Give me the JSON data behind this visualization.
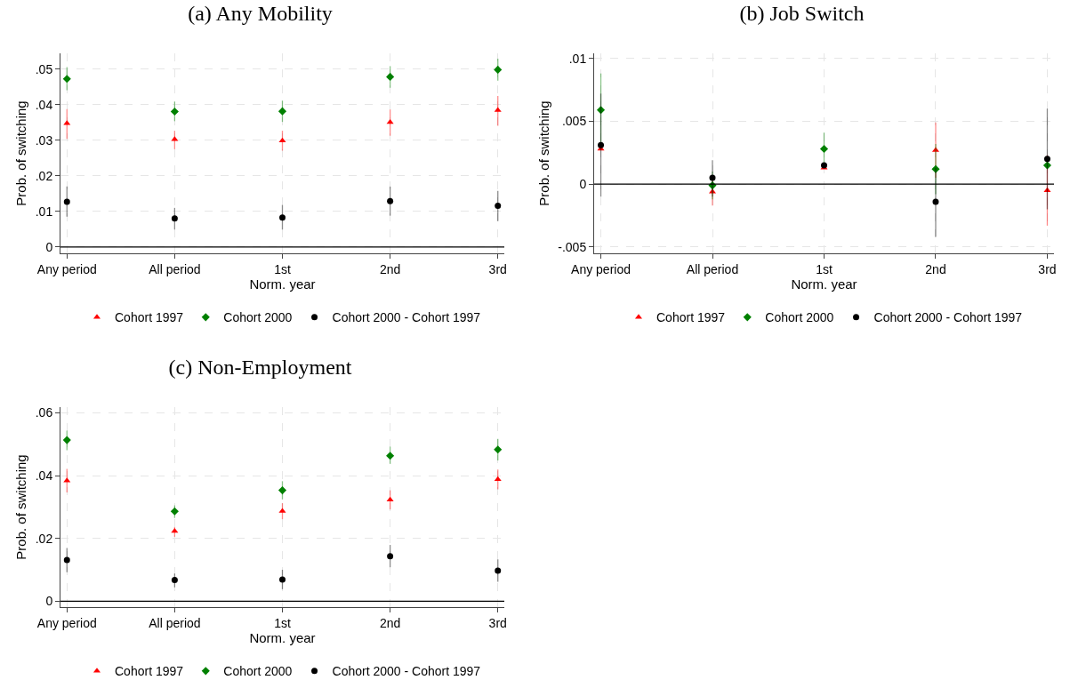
{
  "chart_data": [
    {
      "type": "scatter",
      "title": "(a) Any Mobility",
      "xlabel": "Norm. year",
      "ylabel": "Prob. of switching",
      "categories": [
        "Any period",
        "All period",
        "1st",
        "2nd",
        "3rd"
      ],
      "ylim": [
        -0.0018,
        0.0545
      ],
      "yticks": [
        {
          "value": 0,
          "label": "0"
        },
        {
          "value": 0.01,
          "label": ".01"
        },
        {
          "value": 0.02,
          "label": ".02"
        },
        {
          "value": 0.03,
          "label": ".03"
        },
        {
          "value": 0.04,
          "label": ".04"
        },
        {
          "value": 0.05,
          "label": ".05"
        }
      ],
      "grid": true,
      "legend": "bottom",
      "ref_lines": [
        {
          "axis": "y",
          "value": 0,
          "color": "#000000"
        }
      ],
      "series": [
        {
          "name": "Cohort 1997",
          "color": "#ff0000",
          "marker": "triangle",
          "values": [
            0.0348,
            0.0303,
            0.0299,
            0.0351,
            0.0385
          ],
          "errors": [
            [
              0.0304,
              0.0388
            ],
            [
              0.0275,
              0.0327
            ],
            [
              0.0271,
              0.0327
            ],
            [
              0.0313,
              0.0387
            ],
            [
              0.0341,
              0.0425
            ]
          ]
        },
        {
          "name": "Cohort 2000",
          "color": "#008000",
          "marker": "diamond",
          "values": [
            0.0473,
            0.0381,
            0.0382,
            0.0479,
            0.0499
          ],
          "errors": [
            [
              0.0441,
              0.0506
            ],
            [
              0.0354,
              0.0409
            ],
            [
              0.0352,
              0.0412
            ],
            [
              0.0448,
              0.0509
            ],
            [
              0.0468,
              0.053
            ]
          ]
        },
        {
          "name": "Cohort 2000 - Cohort 1997",
          "color": "#000000",
          "marker": "circle",
          "values": [
            0.0127,
            0.008,
            0.0083,
            0.0129,
            0.0116
          ],
          "errors": [
            [
              0.0085,
              0.017
            ],
            [
              0.0049,
              0.011
            ],
            [
              0.0049,
              0.0118
            ],
            [
              0.0088,
              0.017
            ],
            [
              0.0073,
              0.0158
            ]
          ]
        }
      ]
    },
    {
      "type": "scatter",
      "title": "(b) Job Switch",
      "xlabel": "Norm. year",
      "ylabel": "Prob. of switching",
      "categories": [
        "Any period",
        "All period",
        "1st",
        "2nd",
        "3rd"
      ],
      "ylim": [
        -0.0055,
        0.0104
      ],
      "yticks": [
        {
          "value": -0.005,
          "label": "-.005"
        },
        {
          "value": 0,
          "label": "0"
        },
        {
          "value": 0.005,
          "label": ".005"
        },
        {
          "value": 0.01,
          "label": ".01"
        }
      ],
      "grid": true,
      "legend": "bottom",
      "ref_lines": [
        {
          "axis": "y",
          "value": 0,
          "color": "#000000"
        }
      ],
      "series": [
        {
          "name": "Cohort 1997",
          "color": "#ff0000",
          "marker": "triangle",
          "values": [
            0.0028,
            -0.0006,
            0.0013,
            0.0027,
            -0.0005
          ],
          "errors": [
            null,
            [
              -0.0017,
              0.0005
            ],
            null,
            [
              0.0005,
              0.0049
            ],
            [
              -0.0033,
              0.0023
            ]
          ]
        },
        {
          "name": "Cohort 2000",
          "color": "#008000",
          "marker": "diamond",
          "values": [
            0.0059,
            -0.0001,
            0.0028,
            0.0012,
            0.0015
          ],
          "errors": [
            [
              0.003,
              0.0088
            ],
            [
              -0.0012,
              0.001
            ],
            [
              0.0015,
              0.0041
            ],
            [
              -0.0008,
              0.0032
            ],
            null
          ]
        },
        {
          "name": "Cohort 2000 - Cohort 1997",
          "color": "#000000",
          "marker": "circle",
          "values": [
            0.0031,
            0.0005,
            0.0015,
            -0.0014,
            0.002
          ],
          "errors": [
            [
              -0.001,
              0.0072
            ],
            [
              -0.001,
              0.0019
            ],
            null,
            [
              -0.0042,
              0.0013
            ],
            [
              -0.002,
              0.006
            ]
          ]
        }
      ]
    },
    {
      "type": "scatter",
      "title": "(c) Non-Employment",
      "xlabel": "Norm. year",
      "ylabel": "Prob. of switching",
      "categories": [
        "Any period",
        "All period",
        "1st",
        "2nd",
        "3rd"
      ],
      "ylim": [
        -0.0019,
        0.0618
      ],
      "yticks": [
        {
          "value": 0,
          "label": "0"
        },
        {
          "value": 0.02,
          "label": ".02"
        },
        {
          "value": 0.04,
          "label": ".04"
        },
        {
          "value": 0.06,
          "label": ".06"
        }
      ],
      "grid": true,
      "legend": "bottom",
      "ref_lines": [
        {
          "axis": "y",
          "value": 0,
          "color": "#000000"
        }
      ],
      "series": [
        {
          "name": "Cohort 1997",
          "color": "#ff0000",
          "marker": "triangle",
          "values": [
            0.0384,
            0.0223,
            0.0287,
            0.0323,
            0.0388
          ],
          "errors": [
            [
              0.0346,
              0.0421
            ],
            [
              0.0205,
              0.0236
            ],
            [
              0.0261,
              0.0312
            ],
            [
              0.0292,
              0.0353
            ],
            [
              0.0356,
              0.0419
            ]
          ]
        },
        {
          "name": "Cohort 2000",
          "color": "#008000",
          "marker": "diamond",
          "values": [
            0.0513,
            0.0286,
            0.0353,
            0.0463,
            0.0483
          ],
          "errors": [
            [
              0.0481,
              0.0543
            ],
            [
              0.0265,
              0.0305
            ],
            [
              0.0324,
              0.0382
            ],
            [
              0.0437,
              0.0492
            ],
            [
              0.0448,
              0.0517
            ]
          ]
        },
        {
          "name": "Cohort 2000 - Cohort 1997",
          "color": "#000000",
          "marker": "circle",
          "values": [
            0.0131,
            0.0067,
            0.0069,
            0.0143,
            0.0097
          ],
          "errors": [
            [
              0.0092,
              0.0169
            ],
            [
              0.0044,
              0.0088
            ],
            [
              0.0038,
              0.01
            ],
            [
              0.0108,
              0.0179
            ],
            [
              0.0062,
              0.0133
            ]
          ]
        }
      ]
    }
  ]
}
